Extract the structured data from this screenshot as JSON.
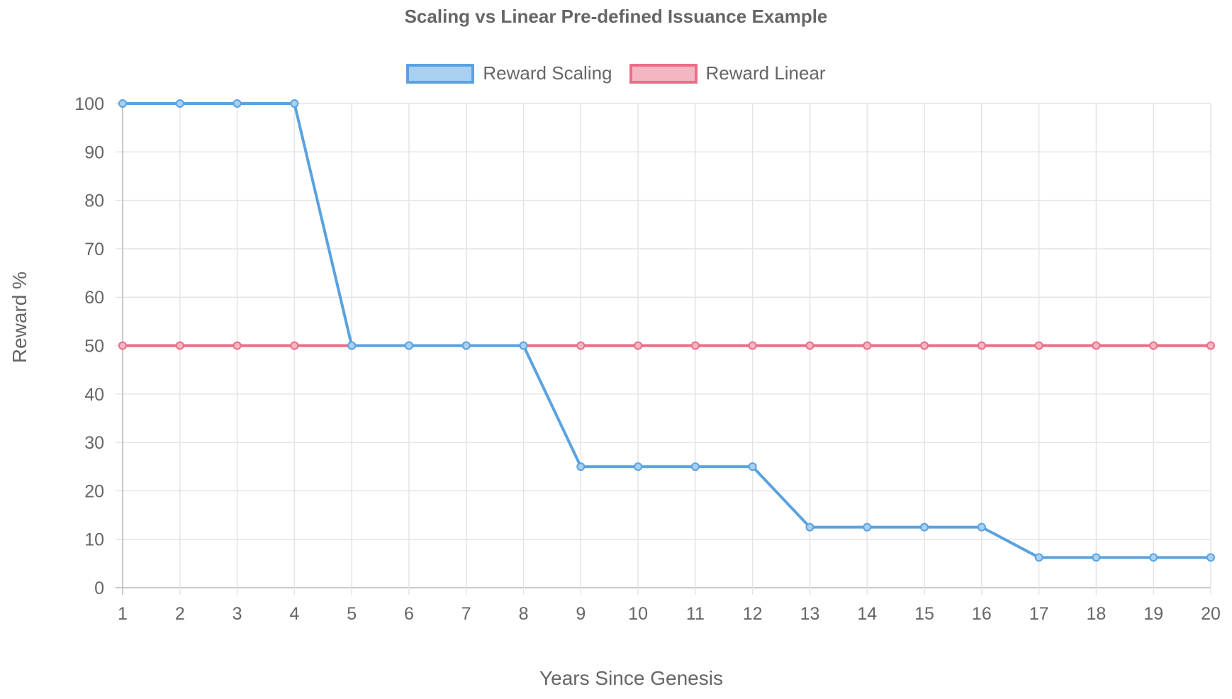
{
  "chart_data": {
    "type": "line",
    "title": "Scaling vs Linear Pre-defined Issuance Example",
    "xlabel": "Years Since Genesis",
    "ylabel": "Reward %",
    "categories": [
      "1",
      "2",
      "3",
      "4",
      "5",
      "6",
      "7",
      "8",
      "9",
      "10",
      "11",
      "12",
      "13",
      "14",
      "15",
      "16",
      "17",
      "18",
      "19",
      "20"
    ],
    "ylim": [
      0,
      100
    ],
    "yticks": [
      0,
      10,
      20,
      30,
      40,
      50,
      60,
      70,
      80,
      90,
      100
    ],
    "grid": true,
    "legend_position": "top",
    "series": [
      {
        "name": "Reward Scaling",
        "color": "#5aa2e0",
        "fill": "#a9cff3",
        "values": [
          100,
          100,
          100,
          100,
          50,
          50,
          50,
          50,
          25,
          25,
          25,
          25,
          12.5,
          12.5,
          12.5,
          12.5,
          6.25,
          6.25,
          6.25,
          6.25
        ]
      },
      {
        "name": "Reward Linear",
        "color": "#eb6d87",
        "fill": "#f5b6c3",
        "values": [
          50,
          50,
          50,
          50,
          50,
          50,
          50,
          50,
          50,
          50,
          50,
          50,
          50,
          50,
          50,
          50,
          50,
          50,
          50,
          50
        ]
      }
    ]
  }
}
